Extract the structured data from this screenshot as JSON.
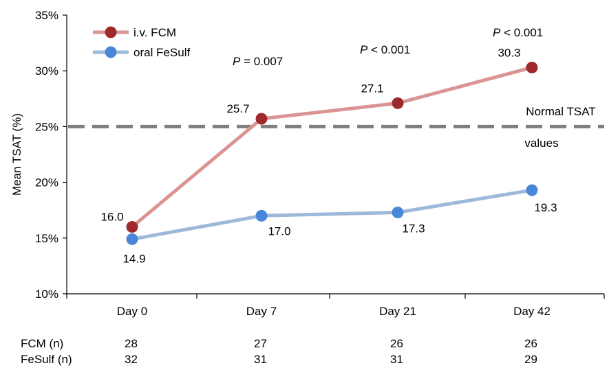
{
  "chart_data": {
    "type": "line",
    "categories": [
      "Day 0",
      "Day 7",
      "Day 21",
      "Day 42"
    ],
    "ylabel": "Mean TSAT (%)",
    "ylim": [
      10,
      35
    ],
    "yticks": [
      "10%",
      "15%",
      "20%",
      "25%",
      "30%",
      "35%"
    ],
    "series": [
      {
        "name": "i.v. FCM",
        "values": [
          16.0,
          25.7,
          27.1,
          30.3
        ],
        "labels": [
          "16.0",
          "25.7",
          "27.1",
          "30.3"
        ],
        "line_color": "#da9493",
        "marker_color": "#9e2a2b"
      },
      {
        "name": "oral FeSulf",
        "values": [
          14.9,
          17.0,
          17.3,
          19.3
        ],
        "labels": [
          "14.9",
          "17.0",
          "17.3",
          "19.3"
        ],
        "line_color": "#9db8d9",
        "marker_color": "#4a86d8"
      }
    ],
    "reference_line": {
      "value": 25,
      "label_line1": "Normal TSAT",
      "label_line2": "values",
      "color": "#7f7f7f"
    },
    "pvalues": [
      {
        "category": "Day 7",
        "p": "P",
        "text": " = 0.007"
      },
      {
        "category": "Day 21",
        "p": "P",
        "text": " < 0.001"
      },
      {
        "category": "Day 42",
        "p": "P",
        "text": " < 0.001"
      }
    ],
    "legend_position": "top-left"
  },
  "n_table": {
    "rows": [
      {
        "label": "FCM (n)",
        "values": [
          "28",
          "27",
          "26",
          "26"
        ]
      },
      {
        "label": "FeSulf (n)",
        "values": [
          "32",
          "31",
          "31",
          "29"
        ]
      }
    ]
  }
}
